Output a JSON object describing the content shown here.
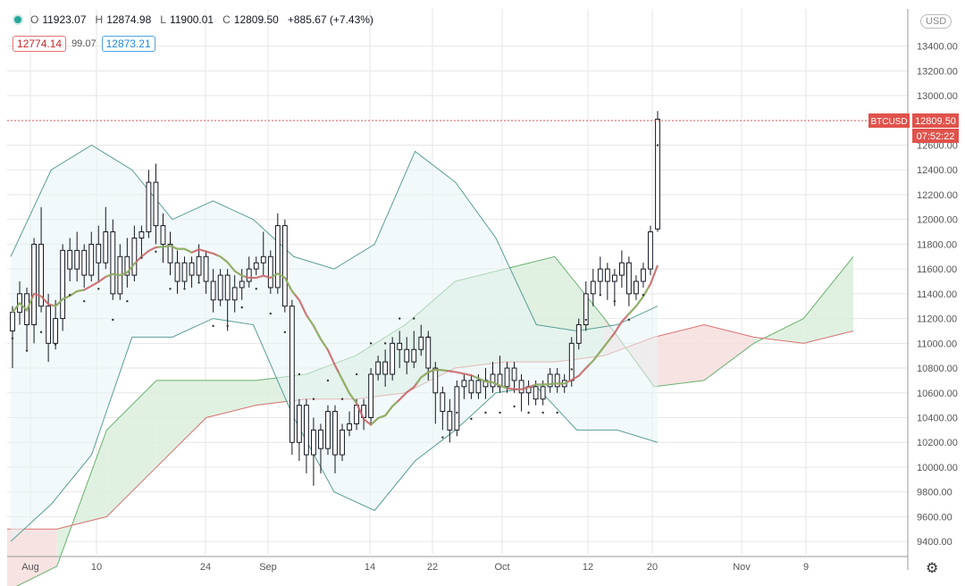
{
  "legend": {
    "open_label": "O",
    "open": "11923.07",
    "high_label": "H",
    "high": "12874.98",
    "low_label": "L",
    "low": "11900.01",
    "close_label": "C",
    "close": "12809.50",
    "change": "+885.67 (+7.43%)"
  },
  "indicators": {
    "red_value": "12774.14",
    "mid_value": "99.07",
    "blue_value": "12873.21"
  },
  "currency_label": "USD",
  "price_tag": {
    "symbol": "BTCUSD",
    "price": "12809.50",
    "countdown": "07:52:22"
  },
  "colors": {
    "up": "#ffffff",
    "down": "#ffffff",
    "wick": "#131722",
    "bb_line": "#5a9e96",
    "bb_fill": "#e7f4f6",
    "cloud_up": "#dbeedd",
    "cloud_down": "#f7dede",
    "span_a": "#6ab06e",
    "span_b": "#d9716e",
    "price_tag": "#e0524b",
    "grid": "#e6e6e6"
  },
  "chart_data": {
    "type": "candlestick",
    "x_ticks": [
      "Aug",
      "10",
      "24",
      "Sep",
      "14",
      "22",
      "Oct",
      "12",
      "20",
      "Nov",
      "9"
    ],
    "y_ticks": [
      9400,
      9600,
      9800,
      10000,
      10200,
      10400,
      10600,
      10800,
      11000,
      11200,
      11400,
      11600,
      11800,
      12000,
      12200,
      12400,
      12600,
      13000,
      13200,
      13400
    ],
    "ylim": [
      9300,
      13700
    ],
    "grid": true,
    "last_close": 12809.5,
    "candles": [
      [
        11100,
        11250,
        10800,
        11300
      ],
      [
        11250,
        11400,
        11150,
        11500
      ],
      [
        11400,
        11150,
        10950,
        11450
      ],
      [
        11150,
        11800,
        11000,
        11850
      ],
      [
        11800,
        11300,
        11250,
        12100
      ],
      [
        11300,
        11000,
        10850,
        11400
      ],
      [
        11000,
        11200,
        10950,
        11350
      ],
      [
        11200,
        11750,
        11100,
        11800
      ],
      [
        11750,
        11600,
        11500,
        11850
      ],
      [
        11600,
        11750,
        11500,
        11900
      ],
      [
        11750,
        11550,
        11450,
        11800
      ],
      [
        11550,
        11800,
        11500,
        11900
      ],
      [
        11800,
        11650,
        11500,
        11950
      ],
      [
        11650,
        11900,
        11600,
        12100
      ],
      [
        11900,
        11400,
        11350,
        12000
      ],
      [
        11400,
        11700,
        11350,
        11800
      ],
      [
        11700,
        11550,
        11450,
        11850
      ],
      [
        11550,
        11850,
        11500,
        11950
      ],
      [
        11850,
        11900,
        11700,
        11950
      ],
      [
        11900,
        12300,
        11850,
        12400
      ],
      [
        12300,
        11950,
        11800,
        12450
      ],
      [
        11950,
        11800,
        11650,
        12050
      ],
      [
        11800,
        11650,
        11550,
        11900
      ],
      [
        11650,
        11500,
        11400,
        11750
      ],
      [
        11500,
        11650,
        11450,
        11700
      ],
      [
        11650,
        11550,
        11450,
        11700
      ],
      [
        11550,
        11700,
        11500,
        11800
      ],
      [
        11700,
        11500,
        11400,
        11750
      ],
      [
        11500,
        11350,
        11250,
        11600
      ],
      [
        11350,
        11550,
        11300,
        11600
      ],
      [
        11550,
        11350,
        11100,
        11600
      ],
      [
        11350,
        11450,
        11250,
        11550
      ],
      [
        11450,
        11500,
        11350,
        11600
      ],
      [
        11500,
        11600,
        11450,
        11700
      ],
      [
        11600,
        11650,
        11550,
        11700
      ],
      [
        11650,
        11700,
        11550,
        11900
      ],
      [
        11700,
        11450,
        11400,
        11750
      ],
      [
        11450,
        11950,
        11400,
        12050
      ],
      [
        11950,
        11300,
        11250,
        12000
      ],
      [
        11300,
        10200,
        10100,
        11350
      ],
      [
        10200,
        10500,
        10050,
        10550
      ],
      [
        10500,
        10100,
        9950,
        10550
      ],
      [
        10100,
        10300,
        9850,
        10400
      ],
      [
        10300,
        10150,
        9950,
        10350
      ],
      [
        10150,
        10450,
        10100,
        10500
      ],
      [
        10450,
        10100,
        9950,
        10500
      ],
      [
        10100,
        10300,
        10050,
        10350
      ],
      [
        10300,
        10350,
        10250,
        10450
      ],
      [
        10350,
        10500,
        10300,
        10550
      ],
      [
        10500,
        10400,
        10300,
        10550
      ],
      [
        10400,
        10750,
        10350,
        10800
      ],
      [
        10750,
        10850,
        10700,
        10900
      ],
      [
        10850,
        10750,
        10650,
        10950
      ],
      [
        10750,
        11000,
        10700,
        11050
      ],
      [
        11000,
        10950,
        10800,
        11100
      ],
      [
        10950,
        10850,
        10750,
        11050
      ],
      [
        10850,
        10950,
        10800,
        11100
      ],
      [
        10950,
        11050,
        10900,
        11150
      ],
      [
        11050,
        10800,
        10700,
        11100
      ],
      [
        10800,
        10600,
        10350,
        10850
      ],
      [
        10600,
        10450,
        10300,
        10650
      ],
      [
        10450,
        10300,
        10200,
        10550
      ],
      [
        10300,
        10650,
        10250,
        10700
      ],
      [
        10650,
        10700,
        10550,
        10750
      ],
      [
        10700,
        10600,
        10550,
        10750
      ],
      [
        10600,
        10700,
        10550,
        10750
      ],
      [
        10700,
        10650,
        10550,
        10800
      ],
      [
        10650,
        10750,
        10600,
        10850
      ],
      [
        10750,
        10650,
        10600,
        10900
      ],
      [
        10650,
        10800,
        10600,
        10850
      ],
      [
        10800,
        10700,
        10600,
        10850
      ],
      [
        10700,
        10600,
        10450,
        10750
      ],
      [
        10600,
        10650,
        10500,
        10700
      ],
      [
        10650,
        10550,
        10500,
        10700
      ],
      [
        10550,
        10650,
        10500,
        10700
      ],
      [
        10650,
        10750,
        10600,
        10800
      ],
      [
        10750,
        10650,
        10600,
        10800
      ],
      [
        10650,
        10700,
        10600,
        10750
      ],
      [
        10700,
        11000,
        10650,
        11050
      ],
      [
        11000,
        11150,
        10950,
        11200
      ],
      [
        11150,
        11400,
        11100,
        11500
      ],
      [
        11400,
        11500,
        11300,
        11600
      ],
      [
        11500,
        11600,
        11400,
        11700
      ],
      [
        11600,
        11500,
        11350,
        11650
      ],
      [
        11500,
        11550,
        11300,
        11600
      ],
      [
        11550,
        11650,
        11450,
        11750
      ],
      [
        11650,
        11400,
        11300,
        11700
      ],
      [
        11400,
        11500,
        11350,
        11550
      ],
      [
        11500,
        11600,
        11450,
        11650
      ],
      [
        11600,
        11900,
        11550,
        11950
      ],
      [
        11923.07,
        12809.5,
        11900.01,
        12874.98
      ]
    ],
    "bb_upper": [
      11700,
      12400,
      12600,
      12400,
      12000,
      12150,
      12000,
      11700,
      11600,
      11800,
      12550,
      12300,
      11850,
      11150,
      11100,
      11150,
      11300
    ],
    "bb_lower": [
      9400,
      9700,
      10100,
      11050,
      11050,
      11200,
      11150,
      10400,
      9800,
      9650,
      10050,
      10300,
      10600,
      10650,
      10300,
      10300,
      10200
    ],
    "ichimoku_span_a": [
      9000,
      9200,
      10300,
      10700,
      10700,
      10700,
      10750,
      10900,
      11150,
      11500,
      11600,
      11700,
      11200,
      10650,
      10700,
      11000,
      11200,
      11700
    ],
    "ichimoku_span_b": [
      9500,
      9500,
      9600,
      10000,
      10400,
      10500,
      10550,
      10550,
      10600,
      10800,
      10850,
      10850,
      10900,
      11050,
      11150,
      11050,
      11000,
      11100
    ]
  }
}
